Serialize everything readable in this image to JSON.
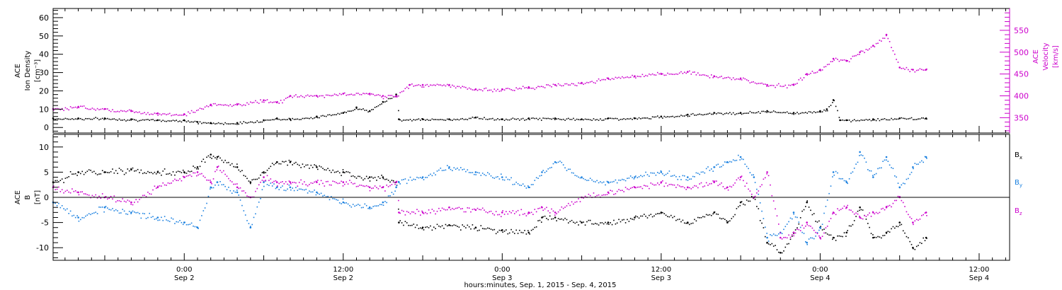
{
  "colors": {
    "frame": "#000000",
    "black": "#000000",
    "magenta": "#cc00cc",
    "blue": "#1a80e0"
  },
  "footer": {
    "xlabel": "hours:minutes, Sep.  1, 2015 - Sep.  4, 2015"
  },
  "x_ticks": [
    {
      "time": "0:00",
      "date": "Sep 2",
      "hour": 24
    },
    {
      "time": "12:00",
      "date": "Sep 2",
      "hour": 36
    },
    {
      "time": "0:00",
      "date": "Sep 3",
      "hour": 48
    },
    {
      "time": "12:00",
      "date": "Sep 3",
      "hour": 60
    },
    {
      "time": "0:00",
      "date": "Sep 4",
      "hour": 72
    },
    {
      "time": "12:00",
      "date": "Sep 4",
      "hour": 84
    }
  ],
  "chart_data": [
    {
      "type": "scatter",
      "x_unit": "hours since 2015-09-01 00:00",
      "xlim": [
        14.1,
        86.3
      ],
      "left_axis": {
        "label_lines": [
          "ACE",
          "Ion Density",
          "[cm⁻³]"
        ],
        "ylim": [
          -3,
          65
        ],
        "ticks": [
          0,
          10,
          20,
          30,
          40,
          50,
          60
        ]
      },
      "right_axis": {
        "label_lines": [
          "ACE",
          "Velocity",
          "[km/s]"
        ],
        "ylim": [
          315,
          600
        ],
        "ticks": [
          350,
          400,
          450,
          500,
          550
        ]
      },
      "series": [
        {
          "name": "Ion Density",
          "color": "black",
          "axis": "left",
          "x": [
            14.1,
            16,
            18,
            20,
            22,
            24,
            25,
            26,
            28,
            30,
            31,
            32,
            34,
            36,
            37,
            38,
            39,
            40,
            40.2,
            42,
            44,
            46,
            48,
            50,
            52,
            54,
            56,
            58,
            60,
            62,
            64,
            66,
            68,
            70,
            72,
            72.5,
            73,
            73.5,
            74,
            76,
            78,
            80
          ],
          "y": [
            5,
            5,
            5,
            4.5,
            4,
            4,
            3,
            2.5,
            2.5,
            4,
            5,
            4.5,
            6,
            8,
            11,
            9,
            14,
            18,
            4.5,
            4.5,
            4.5,
            5.5,
            4.5,
            5,
            5,
            4.5,
            5,
            5,
            6,
            7,
            8,
            8,
            9,
            8,
            9,
            10,
            15,
            4,
            4,
            4.5,
            5,
            5
          ]
        },
        {
          "name": "Velocity",
          "color": "magenta",
          "axis": "right",
          "x": [
            14.1,
            16,
            18,
            20,
            22,
            24,
            26,
            28,
            30,
            31,
            32,
            34,
            36,
            38,
            39,
            40,
            41,
            42,
            44,
            46,
            48,
            50,
            52,
            54,
            56,
            58,
            60,
            62,
            64,
            66,
            68,
            70,
            71,
            72,
            73,
            74,
            75,
            76,
            77,
            78,
            79,
            80
          ],
          "y": [
            370,
            375,
            370,
            365,
            360,
            358,
            380,
            380,
            390,
            385,
            400,
            400,
            405,
            405,
            400,
            400,
            425,
            425,
            425,
            415,
            415,
            420,
            425,
            430,
            440,
            445,
            450,
            455,
            445,
            440,
            425,
            425,
            450,
            460,
            485,
            480,
            500,
            515,
            540,
            465,
            460,
            460
          ]
        }
      ]
    },
    {
      "type": "scatter",
      "x_unit": "hours since 2015-09-01 00:00",
      "xlim": [
        14.1,
        86.3
      ],
      "left_axis": {
        "label_lines": [
          "ACE",
          "B",
          "[nT]"
        ],
        "ylim": [
          -12.5,
          12.5
        ],
        "ticks": [
          -10,
          -5,
          0,
          5,
          10
        ]
      },
      "zero_line": true,
      "legend": [
        {
          "label": "B",
          "sub": "x",
          "color": "black"
        },
        {
          "label": "B",
          "sub": "y",
          "color": "blue"
        },
        {
          "label": "B",
          "sub": "z",
          "color": "magenta"
        }
      ],
      "series": [
        {
          "name": "Bx",
          "color": "black",
          "x": [
            14.1,
            16,
            18,
            20,
            22,
            24,
            25,
            26,
            26.5,
            28,
            29,
            30,
            31,
            32,
            34,
            36,
            38,
            39,
            40,
            40.2,
            42,
            44,
            46,
            48,
            50,
            51,
            52,
            54,
            56,
            58,
            60,
            62,
            64,
            65,
            66,
            67,
            68,
            69,
            70,
            71,
            72,
            73,
            74,
            75,
            76,
            77,
            78,
            79,
            80
          ],
          "y": [
            3,
            5,
            5,
            5.5,
            5,
            5,
            6,
            8.5,
            8,
            6,
            3,
            5,
            7,
            7,
            6,
            5,
            4,
            4,
            3,
            -5,
            -6,
            -5.5,
            -6,
            -6.5,
            -7,
            -4,
            -4,
            -5,
            -5,
            -4,
            -3,
            -5,
            -3,
            -5,
            -1,
            0,
            -9,
            -11,
            -7,
            -1,
            -6,
            -8,
            -7,
            -2,
            -8,
            -7,
            -5,
            -10,
            -8
          ]
        },
        {
          "name": "By",
          "color": "blue",
          "x": [
            14.1,
            16,
            18,
            20,
            22,
            24,
            25,
            26,
            26.5,
            28,
            29,
            30,
            31,
            32,
            34,
            36,
            38,
            39,
            40,
            40.2,
            42,
            44,
            46,
            48,
            50,
            51,
            52,
            54,
            56,
            58,
            60,
            62,
            64,
            65,
            66,
            67,
            68,
            69,
            70,
            71,
            72,
            73,
            74,
            75,
            76,
            77,
            78,
            79,
            80
          ],
          "y": [
            -1,
            -4,
            -2,
            -3,
            -4,
            -5,
            -6,
            2,
            3,
            1,
            -6,
            3,
            2,
            2,
            1,
            -1,
            -2,
            -1,
            2,
            3,
            4,
            6,
            5,
            4,
            2,
            5,
            7,
            4,
            3,
            4,
            5,
            4,
            6,
            7,
            8,
            4,
            -8,
            -7,
            -3,
            -9,
            -6,
            5,
            3,
            9,
            4,
            8,
            2,
            6,
            8
          ]
        },
        {
          "name": "Bz",
          "color": "magenta",
          "x": [
            14.1,
            16,
            18,
            20,
            22,
            24,
            25,
            26,
            26.5,
            28,
            29,
            30,
            31,
            32,
            34,
            36,
            38,
            39,
            40,
            40.2,
            42,
            44,
            46,
            48,
            50,
            51,
            52,
            54,
            56,
            58,
            60,
            62,
            64,
            65,
            66,
            67,
            68,
            69,
            70,
            71,
            72,
            73,
            74,
            75,
            76,
            77,
            78,
            79,
            80
          ],
          "y": [
            2,
            1,
            0,
            -1,
            2,
            4,
            5,
            3,
            6,
            2,
            0,
            4,
            3,
            3,
            3,
            3,
            2,
            2,
            3,
            -3,
            -3,
            -2,
            -2.5,
            -3,
            -3,
            -2,
            -3,
            0,
            1,
            2,
            3,
            2,
            3,
            2,
            4,
            0,
            5,
            -8,
            -7,
            -5,
            -8,
            -3,
            -2,
            -4,
            -3,
            -2,
            0,
            -5,
            -3
          ]
        }
      ]
    }
  ]
}
